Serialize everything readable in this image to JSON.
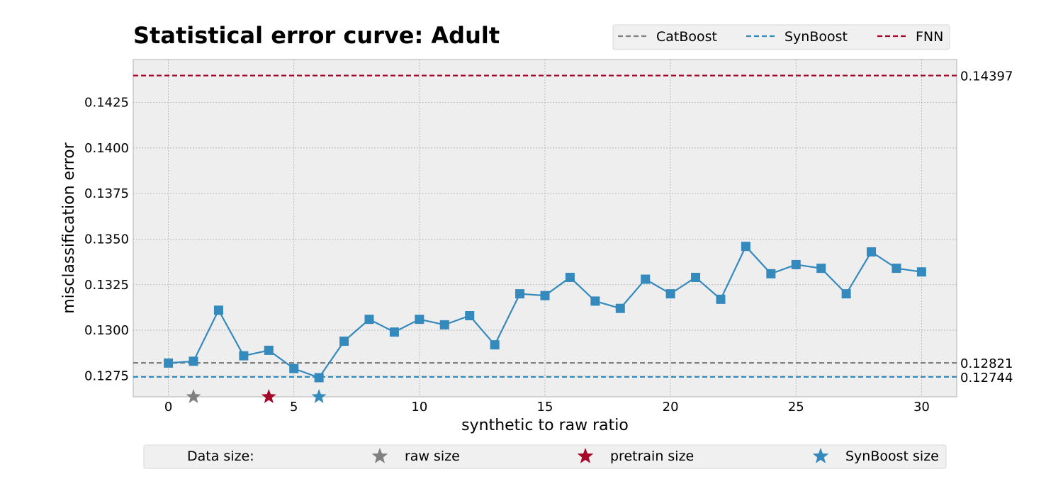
{
  "chart_data": {
    "type": "line",
    "title": "Statistical error curve: Adult",
    "xlabel": "synthetic to raw ratio",
    "ylabel": "misclassification error",
    "xlim": [
      -1.4,
      31.4
    ],
    "ylim": [
      0.12635,
      0.14485
    ],
    "x_ticks": [
      0,
      5,
      10,
      15,
      20,
      25,
      30
    ],
    "y_ticks": [
      0.1275,
      0.13,
      0.1325,
      0.135,
      0.1375,
      0.14,
      0.1425
    ],
    "y_tick_labels": [
      "0.1275",
      "0.1300",
      "0.1325",
      "0.1350",
      "0.1375",
      "0.1400",
      "0.1425"
    ],
    "grid": true,
    "series": [
      {
        "color": "#348abd",
        "marker": "square",
        "x": [
          0,
          1,
          2,
          3,
          4,
          5,
          6,
          7,
          8,
          9,
          10,
          11,
          12,
          13,
          14,
          15,
          16,
          17,
          18,
          19,
          20,
          21,
          22,
          23,
          24,
          25,
          26,
          27,
          28,
          29,
          30
        ],
        "values": [
          0.1282,
          0.1283,
          0.1311,
          0.1286,
          0.1289,
          0.1279,
          0.1274,
          0.1294,
          0.1306,
          0.1299,
          0.1306,
          0.1303,
          0.1308,
          0.1292,
          0.132,
          0.1319,
          0.1329,
          0.1316,
          0.1312,
          0.1328,
          0.132,
          0.1329,
          0.1317,
          0.1346,
          0.1331,
          0.1336,
          0.1334,
          0.132,
          0.1343,
          0.1334,
          0.1332
        ]
      }
    ],
    "reference_lines": [
      {
        "name": "CatBoost",
        "value": 0.12821,
        "label": "0.12821",
        "color": "#808080"
      },
      {
        "name": "SynBoost",
        "value": 0.12744,
        "label": "0.12744",
        "color": "#348abd"
      },
      {
        "name": "FNN",
        "value": 0.14397,
        "label": "0.14397",
        "color": "#a60628"
      }
    ],
    "top_legend": {
      "placement": "top-right",
      "entries": [
        "CatBoost",
        "SynBoost",
        "FNN"
      ]
    },
    "size_markers": [
      {
        "name": "raw size",
        "x": 1,
        "color": "#808080"
      },
      {
        "name": "pretrain size",
        "x": 4,
        "color": "#a60628"
      },
      {
        "name": "SynBoost size",
        "x": 6,
        "color": "#348abd"
      }
    ],
    "bottom_legend": {
      "placement": "bottom",
      "heading": "Data size:",
      "entries": [
        "raw size",
        "pretrain size",
        "SynBoost size"
      ]
    }
  }
}
